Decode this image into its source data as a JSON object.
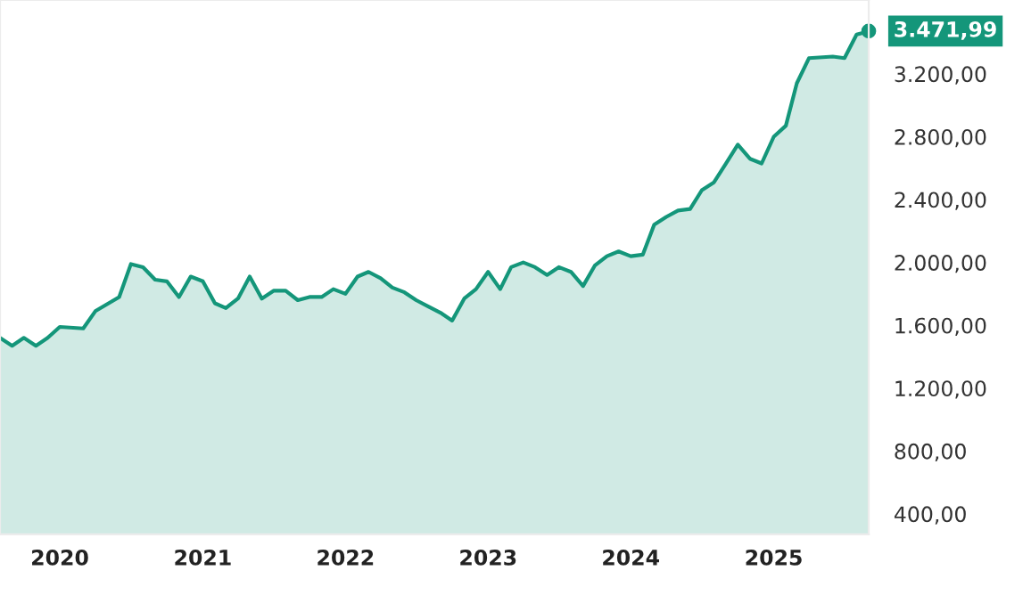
{
  "chart_data": {
    "type": "area",
    "x": [
      "2019-08",
      "2019-09",
      "2019-10",
      "2019-11",
      "2019-12",
      "2020-01",
      "2020-03",
      "2020-04",
      "2020-06",
      "2020-07",
      "2020-08",
      "2020-09",
      "2020-10",
      "2020-11",
      "2020-12",
      "2021-01",
      "2021-02",
      "2021-03",
      "2021-04",
      "2021-05",
      "2021-06",
      "2021-07",
      "2021-08",
      "2021-09",
      "2021-10",
      "2021-11",
      "2021-12",
      "2022-01",
      "2022-02",
      "2022-03",
      "2022-04",
      "2022-05",
      "2022-06",
      "2022-07",
      "2022-08",
      "2022-09",
      "2022-10",
      "2022-11",
      "2022-12",
      "2023-01",
      "2023-02",
      "2023-03",
      "2023-04",
      "2023-05",
      "2023-06",
      "2023-07",
      "2023-08",
      "2023-09",
      "2023-10",
      "2023-11",
      "2023-12",
      "2024-01",
      "2024-02",
      "2024-03",
      "2024-04",
      "2024-05",
      "2024-06",
      "2024-07",
      "2024-08",
      "2024-09",
      "2024-10",
      "2024-11",
      "2024-12",
      "2025-01",
      "2025-02",
      "2025-03",
      "2025-04",
      "2025-06",
      "2025-07",
      "2025-08",
      "2025-09"
    ],
    "series": [
      {
        "color": "#14967a",
        "values": [
          1520,
          1470,
          1520,
          1470,
          1520,
          1590,
          1580,
          1690,
          1780,
          1990,
          1970,
          1890,
          1880,
          1780,
          1910,
          1880,
          1740,
          1710,
          1770,
          1910,
          1770,
          1820,
          1820,
          1760,
          1780,
          1780,
          1830,
          1800,
          1910,
          1940,
          1900,
          1840,
          1810,
          1760,
          1720,
          1680,
          1630,
          1770,
          1830,
          1940,
          1830,
          1970,
          2000,
          1970,
          1920,
          1970,
          1940,
          1850,
          1980,
          2040,
          2070,
          2040,
          2050,
          2240,
          2290,
          2330,
          2340,
          2460,
          2510,
          2630,
          2750,
          2660,
          2630,
          2800,
          2870,
          3140,
          3300,
          3310,
          3300,
          3450,
          3470
        ]
      }
    ],
    "xlim": [
      "2019-08",
      "2025-09"
    ],
    "xticks": [
      {
        "value": "2020-01",
        "label": "2020"
      },
      {
        "value": "2021-01",
        "label": "2021"
      },
      {
        "value": "2022-01",
        "label": "2022"
      },
      {
        "value": "2023-01",
        "label": "2023"
      },
      {
        "value": "2024-01",
        "label": "2024"
      },
      {
        "value": "2025-01",
        "label": "2025"
      }
    ],
    "ylim": [
      270,
      3670
    ],
    "yticks": [
      {
        "value": 400,
        "label": "400,00"
      },
      {
        "value": 800,
        "label": "800,00"
      },
      {
        "value": 1200,
        "label": "1.200,00"
      },
      {
        "value": 1600,
        "label": "1.600,00"
      },
      {
        "value": 2000,
        "label": "2.000,00"
      },
      {
        "value": 2400,
        "label": "2.400,00"
      },
      {
        "value": 2800,
        "label": "2.800,00"
      },
      {
        "value": 3200,
        "label": "3.200,00"
      }
    ],
    "annotations": [
      {
        "text": "3.471,99",
        "x": "2025-09",
        "y": 3471.99
      }
    ],
    "grid": false,
    "marker": "none",
    "line_style": "solid"
  }
}
